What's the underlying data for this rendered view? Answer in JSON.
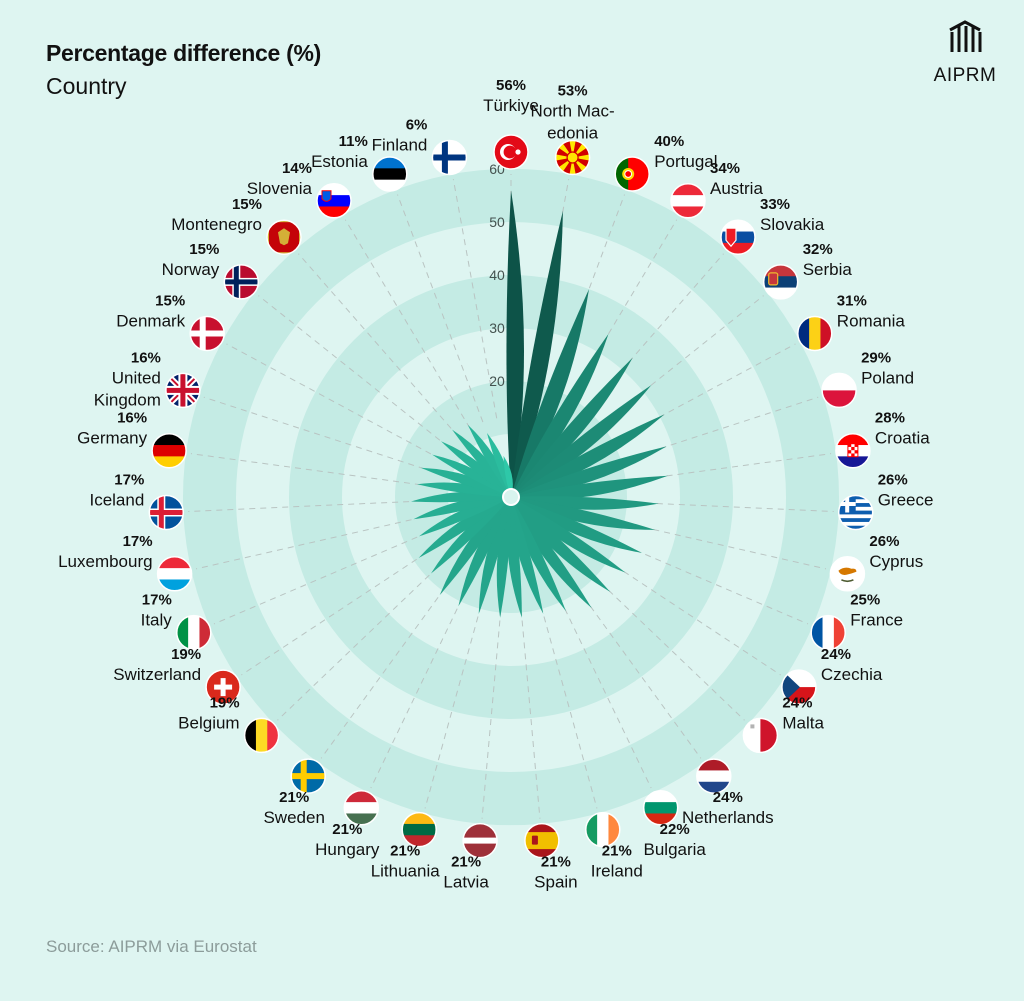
{
  "title": "Percentage difference (%)",
  "subtitle": "Country",
  "brand": "AIPRM",
  "source": "Source: AIPRM via Eurostat",
  "colors": {
    "background": "#def5f1",
    "ring": "#c4ebe4",
    "petal_dark": "#0a4a40",
    "petal_light": "#2ec8a8"
  },
  "chart_data": {
    "type": "radial-bar",
    "title": "Percentage difference (%)",
    "subtitle": "Country",
    "rlim": [
      0,
      60
    ],
    "radial_ticks": [
      "20",
      "30",
      "40",
      "50",
      "60"
    ],
    "categories": [
      {
        "name": "Türkiye",
        "value": 56,
        "label": "56%",
        "flag": "turkey-flag"
      },
      {
        "name": "North Mac-edonia",
        "value": 53,
        "label": "53%",
        "flag": "north-macedonia-flag"
      },
      {
        "name": "Portugal",
        "value": 40,
        "label": "40%",
        "flag": "portugal-flag"
      },
      {
        "name": "Austria",
        "value": 34,
        "label": "34%",
        "flag": "austria-flag"
      },
      {
        "name": "Slovakia",
        "value": 33,
        "label": "33%",
        "flag": "slovakia-flag"
      },
      {
        "name": "Serbia",
        "value": 32,
        "label": "32%",
        "flag": "serbia-flag"
      },
      {
        "name": "Romania",
        "value": 31,
        "label": "31%",
        "flag": "romania-flag"
      },
      {
        "name": "Poland",
        "value": 29,
        "label": "29%",
        "flag": "poland-flag"
      },
      {
        "name": "Croatia",
        "value": 28,
        "label": "28%",
        "flag": "croatia-flag"
      },
      {
        "name": "Greece",
        "value": 26,
        "label": "26%",
        "flag": "greece-flag"
      },
      {
        "name": "Cyprus",
        "value": 26,
        "label": "26%",
        "flag": "cyprus-flag"
      },
      {
        "name": "France",
        "value": 25,
        "label": "25%",
        "flag": "france-flag"
      },
      {
        "name": "Czechia",
        "value": 24,
        "label": "24%",
        "flag": "czechia-flag"
      },
      {
        "name": "Malta",
        "value": 24,
        "label": "24%",
        "flag": "malta-flag"
      },
      {
        "name": "Netherlands",
        "value": 24,
        "label": "24%",
        "flag": "netherlands-flag"
      },
      {
        "name": "Bulgaria",
        "value": 22,
        "label": "22%",
        "flag": "bulgaria-flag"
      },
      {
        "name": "Ireland",
        "value": 21,
        "label": "21%",
        "flag": "ireland-flag"
      },
      {
        "name": "Spain",
        "value": 21,
        "label": "21%",
        "flag": "spain-flag"
      },
      {
        "name": "Latvia",
        "value": 21,
        "label": "21%",
        "flag": "latvia-flag"
      },
      {
        "name": "Lithuania",
        "value": 21,
        "label": "21%",
        "flag": "lithuania-flag"
      },
      {
        "name": "Hungary",
        "value": 21,
        "label": "21%",
        "flag": "hungary-flag"
      },
      {
        "name": "Sweden",
        "value": 21,
        "label": "21%",
        "flag": "sweden-flag"
      },
      {
        "name": "Belgium",
        "value": 19,
        "label": "19%",
        "flag": "belgium-flag"
      },
      {
        "name": "Switzerland",
        "value": 19,
        "label": "19%",
        "flag": "switzerland-flag"
      },
      {
        "name": "Italy",
        "value": 17,
        "label": "17%",
        "flag": "italy-flag"
      },
      {
        "name": "Luxembourg",
        "value": 17,
        "label": "17%",
        "flag": "luxembourg-flag"
      },
      {
        "name": "Iceland",
        "value": 17,
        "label": "17%",
        "flag": "iceland-flag"
      },
      {
        "name": "Germany",
        "value": 16,
        "label": "16%",
        "flag": "germany-flag"
      },
      {
        "name": "United Kingdom",
        "value": 16,
        "label": "16%",
        "flag": "united-kingdom-flag"
      },
      {
        "name": "Denmark",
        "value": 15,
        "label": "15%",
        "flag": "denmark-flag"
      },
      {
        "name": "Norway",
        "value": 15,
        "label": "15%",
        "flag": "norway-flag"
      },
      {
        "name": "Montenegro",
        "value": 15,
        "label": "15%",
        "flag": "montenegro-flag"
      },
      {
        "name": "Slovenia",
        "value": 14,
        "label": "14%",
        "flag": "slovenia-flag"
      },
      {
        "name": "Estonia",
        "value": 11,
        "label": "11%",
        "flag": "estonia-flag"
      },
      {
        "name": "Finland",
        "value": 6,
        "label": "6%",
        "flag": "finland-flag"
      }
    ]
  }
}
